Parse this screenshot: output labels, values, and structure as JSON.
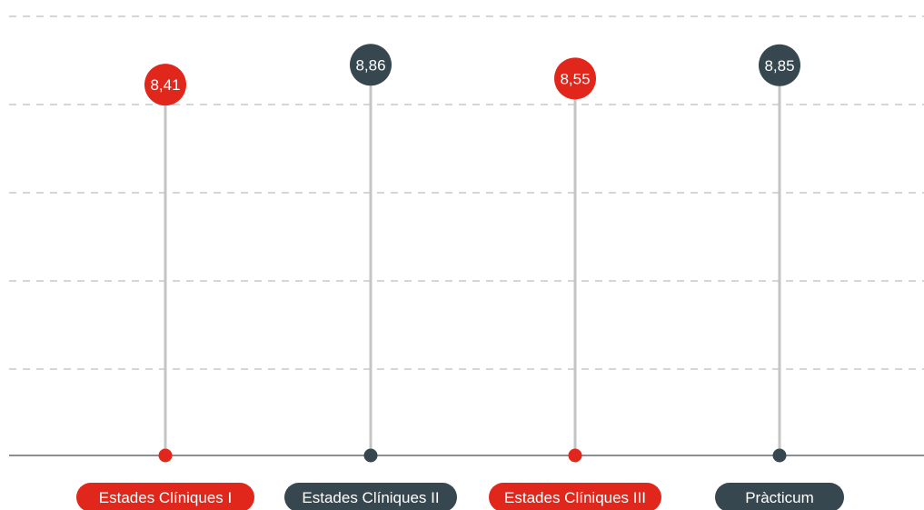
{
  "chart_data": {
    "type": "lollipop",
    "categories": [
      "Estades Clíniques I",
      "Estades Clíniques II",
      "Estades Clíniques III",
      "Pràcticum"
    ],
    "values": [
      8.41,
      8.86,
      8.55,
      8.85
    ],
    "value_labels": [
      "8,41",
      "8,86",
      "8,55",
      "8,85"
    ],
    "colors": [
      "#e1261c",
      "#37474f",
      "#e1261c",
      "#37474f"
    ],
    "title": "",
    "xlabel": "",
    "ylabel": "",
    "ylim": [
      0,
      10
    ],
    "grid": true,
    "legend": "none"
  },
  "colors": {
    "accent_red": "#e1261c",
    "accent_slate": "#37474f",
    "stem": "#c4c4c4",
    "grid": "#c9c9c9",
    "baseline": "#8a8f94"
  }
}
